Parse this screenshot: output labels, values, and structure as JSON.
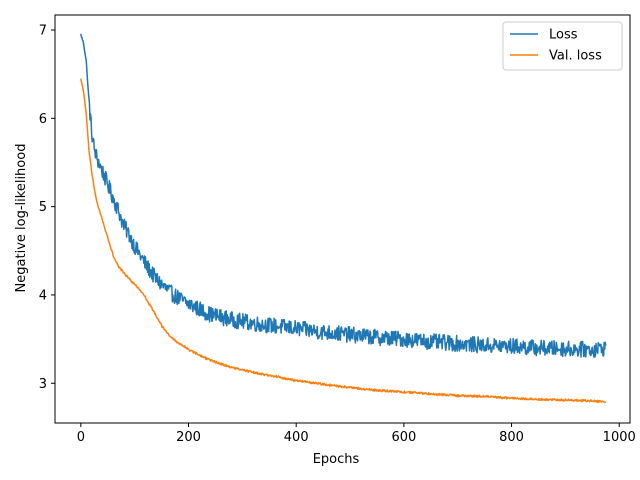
{
  "chart_data": {
    "type": "line",
    "xlabel": "Epochs",
    "ylabel": "Negative log-likelihood",
    "xlim": [
      -48,
      1020
    ],
    "ylim": [
      2.55,
      7.17
    ],
    "xticks": [
      0,
      200,
      400,
      600,
      800,
      1000
    ],
    "yticks": [
      3,
      4,
      5,
      6,
      7
    ],
    "legend_position": "top-right",
    "grid": false,
    "series": [
      {
        "name": "Loss",
        "color": "#1f77b4",
        "noise": 0.09,
        "x": [
          0,
          5,
          10,
          15,
          20,
          25,
          30,
          40,
          50,
          60,
          70,
          80,
          90,
          100,
          110,
          120,
          130,
          140,
          150,
          160,
          170,
          180,
          190,
          200,
          220,
          240,
          260,
          280,
          300,
          330,
          360,
          400,
          450,
          500,
          550,
          600,
          650,
          700,
          750,
          800,
          850,
          900,
          950,
          975
        ],
        "values": [
          6.95,
          6.85,
          6.65,
          6.2,
          5.85,
          5.65,
          5.55,
          5.4,
          5.25,
          5.1,
          4.95,
          4.78,
          4.68,
          4.55,
          4.45,
          4.35,
          4.26,
          4.18,
          4.12,
          4.06,
          4.01,
          3.97,
          3.93,
          3.9,
          3.84,
          3.78,
          3.75,
          3.72,
          3.7,
          3.67,
          3.65,
          3.62,
          3.58,
          3.55,
          3.52,
          3.5,
          3.47,
          3.45,
          3.43,
          3.42,
          3.4,
          3.39,
          3.38,
          3.4
        ]
      },
      {
        "name": "Val. loss",
        "color": "#ff7f0e",
        "noise": 0.012,
        "x": [
          0,
          5,
          10,
          15,
          20,
          25,
          30,
          40,
          50,
          60,
          70,
          80,
          90,
          100,
          110,
          120,
          130,
          140,
          150,
          160,
          170,
          180,
          190,
          200,
          220,
          240,
          260,
          280,
          300,
          330,
          360,
          400,
          450,
          500,
          550,
          600,
          650,
          700,
          750,
          800,
          850,
          900,
          950,
          975
        ],
        "values": [
          6.45,
          6.3,
          6.05,
          5.65,
          5.4,
          5.2,
          5.05,
          4.85,
          4.65,
          4.45,
          4.32,
          4.25,
          4.18,
          4.12,
          4.05,
          3.97,
          3.87,
          3.76,
          3.65,
          3.57,
          3.51,
          3.46,
          3.43,
          3.38,
          3.32,
          3.26,
          3.22,
          3.18,
          3.15,
          3.11,
          3.08,
          3.03,
          2.99,
          2.95,
          2.92,
          2.9,
          2.88,
          2.86,
          2.85,
          2.83,
          2.82,
          2.81,
          2.8,
          2.79
        ]
      }
    ]
  }
}
